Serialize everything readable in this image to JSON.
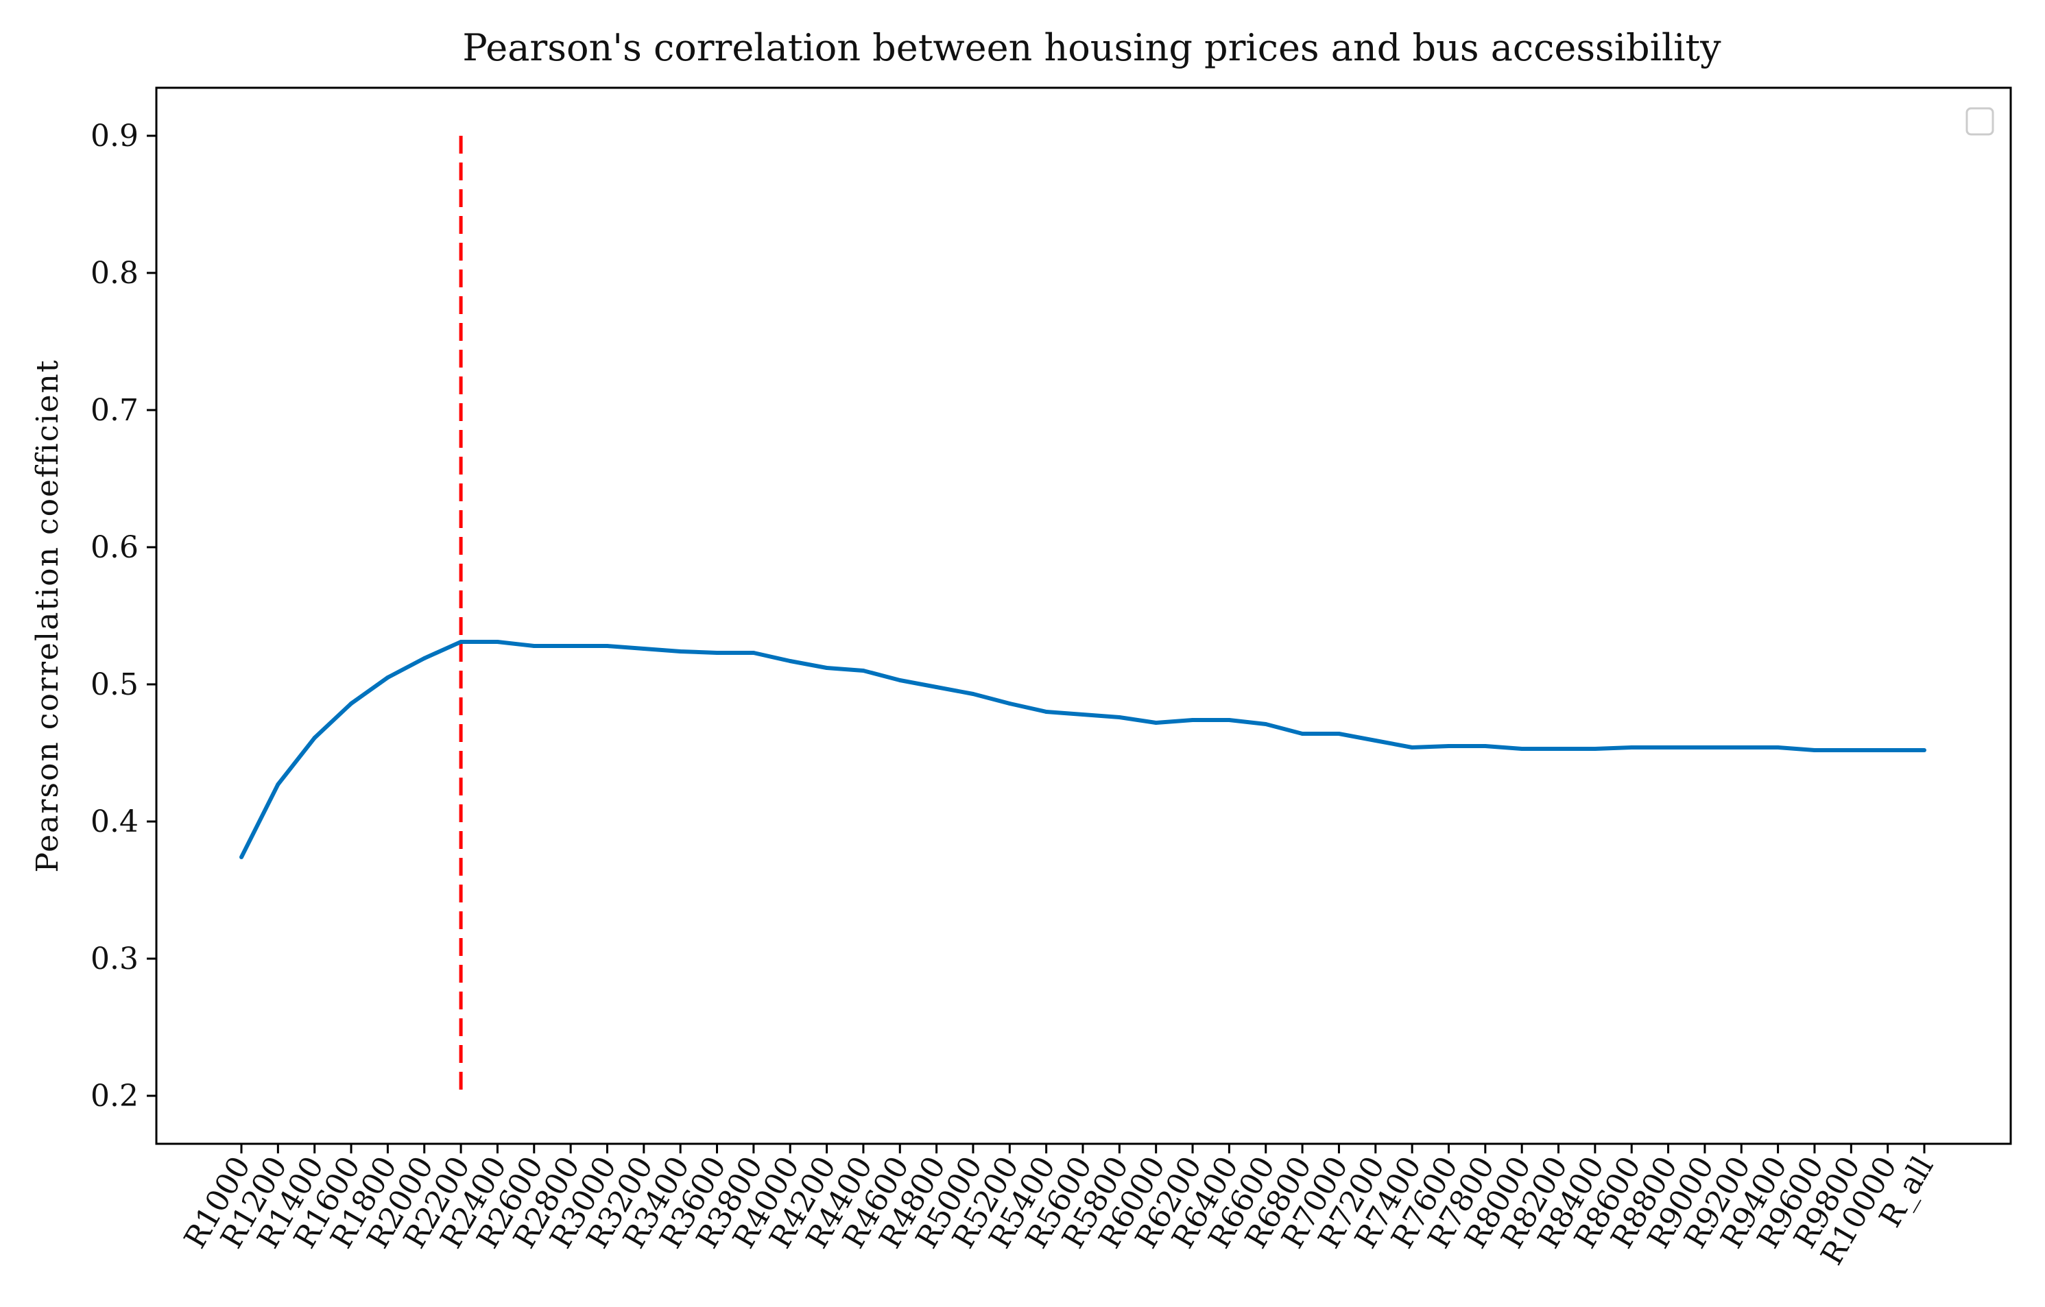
{
  "chart_data": {
    "type": "line",
    "title": "Pearson's correlation between housing prices and bus accessibility",
    "xlabel": "",
    "ylabel": "Pearson correlation coefficient",
    "categories": [
      "R1000",
      "R1200",
      "R1400",
      "R1600",
      "R1800",
      "R2000",
      "R2200",
      "R2400",
      "R2600",
      "R2800",
      "R3000",
      "R3200",
      "R3400",
      "R3600",
      "R3800",
      "R4000",
      "R4200",
      "R4400",
      "R4600",
      "R4800",
      "R5000",
      "R5200",
      "R5400",
      "R5600",
      "R5800",
      "R6000",
      "R6200",
      "R6400",
      "R6600",
      "R6800",
      "R7000",
      "R7200",
      "R7400",
      "R7600",
      "R7800",
      "R8000",
      "R8200",
      "R8400",
      "R8600",
      "R8800",
      "R9000",
      "R9200",
      "R9400",
      "R9600",
      "R9800",
      "R10000",
      "R_all"
    ],
    "series": [
      {
        "name": "Pearson correlation",
        "color": "#0072bd",
        "values": [
          0.374,
          0.427,
          0.461,
          0.486,
          0.505,
          0.519,
          0.531,
          0.531,
          0.528,
          0.528,
          0.528,
          0.526,
          0.524,
          0.523,
          0.523,
          0.517,
          0.512,
          0.51,
          0.503,
          0.498,
          0.493,
          0.486,
          0.48,
          0.478,
          0.476,
          0.472,
          0.474,
          0.474,
          0.471,
          0.464,
          0.464,
          0.459,
          0.454,
          0.455,
          0.455,
          0.453,
          0.453,
          0.453,
          0.454,
          0.454,
          0.454,
          0.454,
          0.454,
          0.452,
          0.452,
          0.452,
          0.452
        ]
      }
    ],
    "reference_line": {
      "category": "R2200",
      "y_from": 0.2,
      "y_to": 0.9,
      "color": "#ff0000",
      "style": "dashed"
    },
    "ylim": [
      0.165,
      0.935
    ],
    "yticks": [
      "0.2",
      "0.3",
      "0.4",
      "0.5",
      "0.6",
      "0.7",
      "0.8",
      "0.9"
    ],
    "grid": false,
    "legend": {
      "position": "top-right",
      "entries": []
    }
  }
}
